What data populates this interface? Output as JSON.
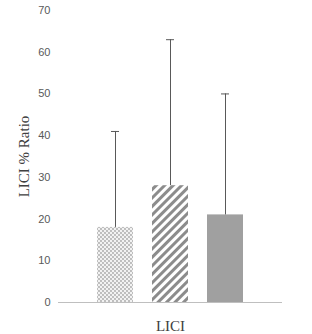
{
  "chart_data": {
    "type": "bar",
    "x_label": "LICI",
    "y_label": "LICI % Ratio",
    "categories": [
      null,
      null,
      null
    ],
    "values": [
      18,
      28,
      21
    ],
    "errors": [
      23,
      35,
      29
    ],
    "colors": [
      "#a6a6a6",
      "#8c8c8c",
      "#a0a0a0"
    ],
    "ylim": [
      0,
      70
    ],
    "yticks": [
      0,
      10,
      20,
      30,
      40,
      50,
      60,
      70
    ],
    "grid": false
  }
}
